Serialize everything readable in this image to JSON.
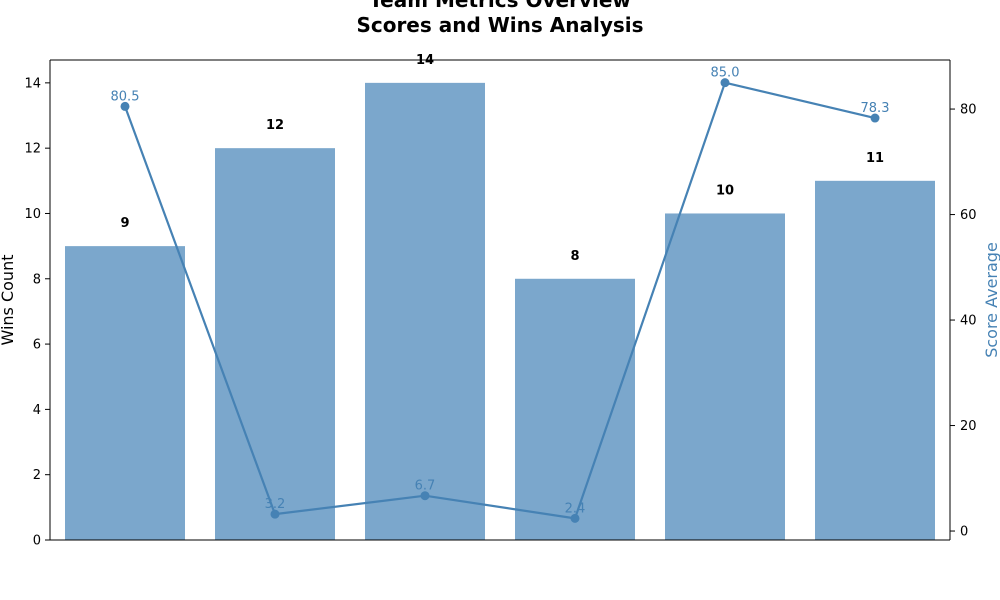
{
  "chart_data": {
    "type": "bar",
    "title_lines": [
      "Team Metrics Overview",
      "Scores and Wins Analysis"
    ],
    "categories": [
      "",
      "",
      "",
      "",
      "",
      ""
    ],
    "ylabel": "Wins Count",
    "ylabel_right": "Score Average",
    "ylim": [
      0,
      14.7
    ],
    "ylim_right": [
      -1.7,
      89.3
    ],
    "yticks": [
      0,
      2,
      4,
      6,
      8,
      10,
      12,
      14
    ],
    "yticks_right": [
      0,
      20,
      40,
      60,
      80
    ],
    "series": [
      {
        "name": "Wins Count",
        "type": "bar",
        "axis": "left",
        "values": [
          9,
          12,
          14,
          8,
          10,
          11
        ],
        "labels": [
          "9",
          "12",
          "14",
          "8",
          "10",
          "11"
        ]
      },
      {
        "name": "Score Average",
        "type": "line",
        "axis": "right",
        "values": [
          80.5,
          3.2,
          6.7,
          2.4,
          85.0,
          78.3
        ],
        "labels": [
          "80.5",
          "3.2",
          "6.7",
          "2.4",
          "85.0",
          "78.3"
        ]
      }
    ],
    "colors": {
      "bar": "#7ba7cc",
      "line": "#4682b4",
      "axis": "#000000"
    },
    "grid": false,
    "legend": "none"
  }
}
